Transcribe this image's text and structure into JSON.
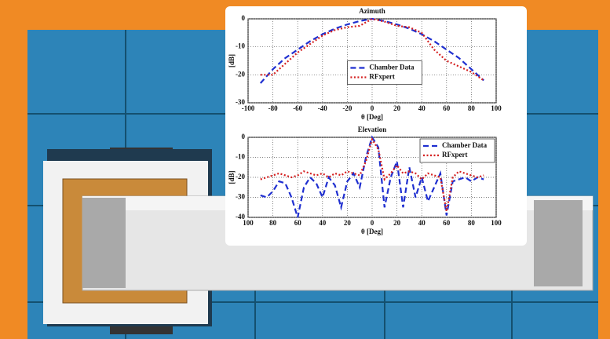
{
  "chart_data": [
    {
      "type": "line",
      "title": "Azimuth",
      "x_label": "θ [Deg]",
      "y_label": "[dB]",
      "x": [
        -90,
        -80,
        -70,
        -60,
        -50,
        -40,
        -30,
        -20,
        -10,
        0,
        10,
        20,
        30,
        40,
        50,
        60,
        70,
        80,
        90
      ],
      "series": [
        {
          "name": "Chamber Data",
          "color": "#1f2fd0",
          "style": "dashed",
          "values": [
            -23,
            -18,
            -14,
            -11,
            -8,
            -5.5,
            -3.5,
            -2,
            -0.8,
            0,
            -0.8,
            -2,
            -3.5,
            -5.5,
            -8,
            -11,
            -14,
            -18,
            -22
          ]
        },
        {
          "name": "RFxpert",
          "color": "#d42020",
          "style": "dotted",
          "values": [
            -20,
            -20,
            -16,
            -12,
            -9,
            -6,
            -4,
            -3,
            -2.5,
            0,
            -1,
            -2.5,
            -3,
            -5,
            -11,
            -15,
            -17,
            -19,
            -22
          ]
        }
      ],
      "xlim": [
        -100,
        100
      ],
      "xticks": [
        -100,
        -80,
        -60,
        -40,
        -20,
        0,
        20,
        40,
        60,
        80,
        100
      ],
      "ylim": [
        -30,
        0
      ],
      "yticks": [
        0,
        -10,
        -20,
        -30
      ],
      "grid": true,
      "legend": "center right"
    },
    {
      "type": "line",
      "title": "Elevation",
      "x_label": "θ [Deg]",
      "y_label": "[dB]",
      "x": [
        -90,
        -85,
        -80,
        -75,
        -70,
        -65,
        -60,
        -55,
        -50,
        -45,
        -40,
        -35,
        -30,
        -25,
        -20,
        -15,
        -10,
        -5,
        0,
        5,
        10,
        15,
        20,
        25,
        30,
        35,
        40,
        45,
        50,
        55,
        60,
        65,
        70,
        75,
        80,
        85,
        90
      ],
      "series": [
        {
          "name": "Chamber Data",
          "color": "#1f2fd0",
          "style": "dashed",
          "values": [
            -29,
            -30,
            -27,
            -22,
            -23,
            -30,
            -40,
            -25,
            -20,
            -23,
            -30,
            -20,
            -24,
            -35,
            -22,
            -18,
            -25,
            -10,
            0,
            -5,
            -35,
            -20,
            -12,
            -35,
            -15,
            -30,
            -20,
            -32,
            -25,
            -18,
            -39,
            -22,
            -21,
            -20,
            -22,
            -20,
            -21
          ]
        },
        {
          "name": "RFxpert",
          "color": "#d42020",
          "style": "dotted",
          "values": [
            -21,
            -20,
            -19,
            -18,
            -19,
            -20,
            -19,
            -17,
            -18,
            -19,
            -18,
            -20,
            -18,
            -19,
            -17,
            -18,
            -19,
            -12,
            -1,
            -6,
            -21,
            -18,
            -14,
            -18,
            -17,
            -18,
            -21,
            -18,
            -19,
            -20,
            -37,
            -20,
            -17,
            -18,
            -19,
            -20,
            -19
          ]
        }
      ],
      "xlim": [
        -100,
        100
      ],
      "xticks": [
        {
          "value": -100,
          "label": "100"
        },
        {
          "value": -80,
          "label": "80"
        },
        {
          "value": -60,
          "label": "60"
        },
        {
          "value": -40,
          "label": "40"
        },
        {
          "value": -20,
          "label": "20"
        },
        0,
        20,
        40,
        60,
        80,
        100
      ],
      "ylim": [
        -40,
        0
      ],
      "yticks": [
        0,
        -10,
        -20,
        -30,
        -40
      ],
      "grid": true,
      "legend": "upper right"
    }
  ]
}
